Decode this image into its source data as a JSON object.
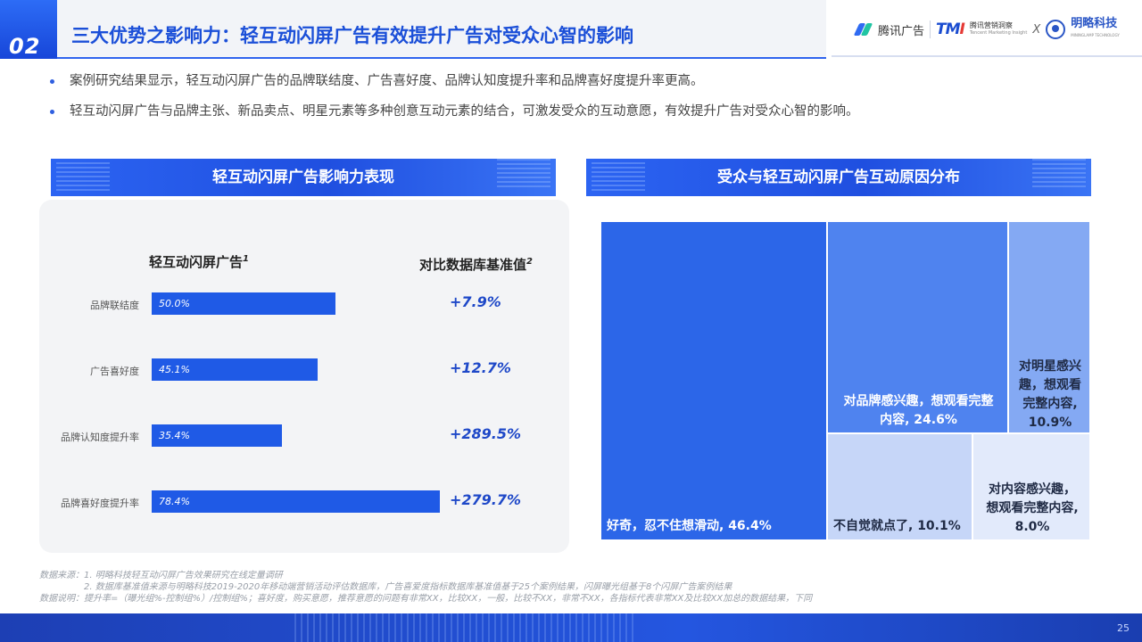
{
  "header": {
    "section_number": "02",
    "title": "三大优势之影响力：轻互动闪屏广告有效提升广告对受众心智的影响",
    "logos": {
      "tencent_ads": "腾讯广告",
      "tmi_mark": "TMI",
      "tmi_name": "腾讯营销洞察",
      "tmi_sub": "Tencent Marketing Insight",
      "x": "X",
      "mingle": "明略科技",
      "mingle_sub": "MININGLAMP TECHNOLOGY"
    }
  },
  "bullets": [
    "案例研究结果显示，轻互动闪屏广告的品牌联结度、广告喜好度、品牌认知度提升率和品牌喜好度提升率更高。",
    "轻互动闪屏广告与品牌主张、新品卖点、明星元素等多种创意互动元素的结合，可激发受众的互动意愿，有效提升广告对受众心智的影响。"
  ],
  "left_section_title": "轻互动闪屏广告影响力表现",
  "right_section_title": "受众与轻互动闪屏广告互动原因分布",
  "chart_data": [
    {
      "type": "bar",
      "orientation": "horizontal",
      "column_header": "轻互动闪屏广告",
      "column_header_sup": "1",
      "delta_header": "对比数据库基准值",
      "delta_header_sup": "2",
      "categories": [
        "品牌联结度",
        "广告喜好度",
        "品牌认知度提升率",
        "品牌喜好度提升率"
      ],
      "values": [
        50.0,
        45.1,
        35.4,
        78.4
      ],
      "value_labels": [
        "50.0%",
        "45.1%",
        "35.4%",
        "78.4%"
      ],
      "deltas": [
        "+7.9%",
        "+12.7%",
        "+289.5%",
        "+279.7%"
      ],
      "xlim": [
        0,
        100
      ],
      "bar_color": "#1f5ae6"
    },
    {
      "type": "treemap",
      "items": [
        {
          "label": "好奇，忍不住想滑动, 46.4%",
          "value": 46.4,
          "color": "#2c66e8"
        },
        {
          "label": "对品牌感兴趣，想观看完整内容, 24.6%",
          "value": 24.6,
          "color": "#4f83ef"
        },
        {
          "label": "对明星感兴趣，想观看完整内容, 10.9%",
          "value": 10.9,
          "color": "#84a9f3"
        },
        {
          "label": "不自觉就点了, 10.1%",
          "value": 10.1,
          "color": "#c6d6f8"
        },
        {
          "label": "对内容感兴趣，想观看完整内容, 8.0%",
          "value": 8.0,
          "color": "#e2eafb"
        }
      ]
    }
  ],
  "tile_text": {
    "t0": "好奇，忍不住想滑动, 46.4%",
    "t1a": "对品牌感兴趣，想观看完整",
    "t1b": "内容, 24.6%",
    "t2a": "对明星感兴",
    "t2b": "趣，想观看",
    "t2c": "完整内容,",
    "t2d": "10.9%",
    "t3": "不自觉就点了, 10.1%",
    "t4a": "对内容感兴趣，",
    "t4b": "想观看完整内容,",
    "t4c": "8.0%"
  },
  "footnotes": [
    "数据来源：1. 明略科技轻互动闪屏广告效果研究在线定量调研",
    "2. 数据库基准值来源与明略科技2019-2020年移动端营销活动评估数据库，广告喜爱度指标数据库基准值基于25个案例结果，闪屏曝光组基于8个闪屏广告案例结果",
    "数据说明：提升率=（曝光组%-控制组%）/控制组%；喜好度，购买意愿，推荐意愿的问题有非常XX，比较XX，一般，比较不XX，非常不XX，各指标代表非常XX及比较XX加总的数据结果，下同"
  ],
  "page_number": "25"
}
